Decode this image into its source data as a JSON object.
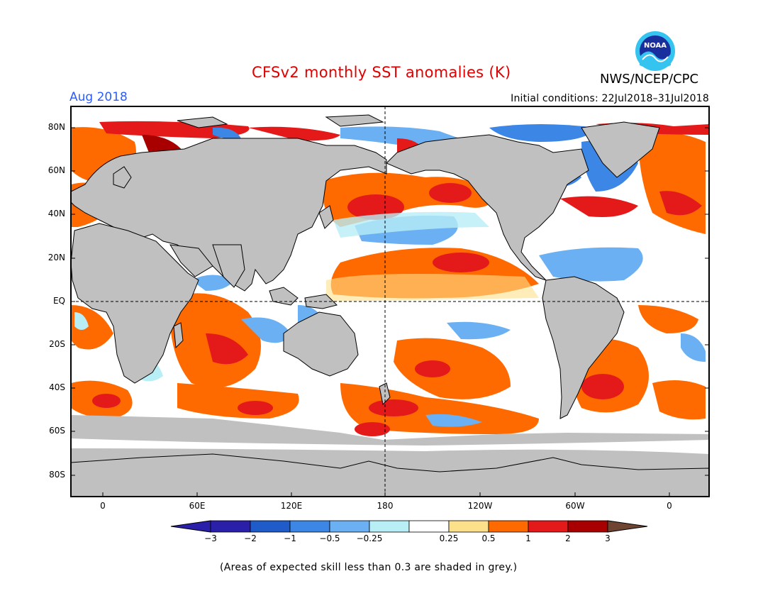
{
  "header": {
    "title": "CFSv2 monthly SST anomalies (K)",
    "month": "Aug 2018",
    "agency": "NWS/NCEP/CPC",
    "logo_text": "NOAA",
    "initial_conditions": "Initial conditions: 22Jul2018–31Jul2018"
  },
  "map": {
    "lat_labels": [
      "80N",
      "60N",
      "40N",
      "20N",
      "EQ",
      "20S",
      "40S",
      "60S",
      "80S"
    ],
    "lon_labels": [
      "0",
      "60E",
      "120E",
      "180",
      "120W",
      "60W",
      "0"
    ]
  },
  "colorbar": {
    "labels": [
      "−3",
      "−2",
      "−1",
      "−0.5",
      "−0.25",
      "0.25",
      "0.5",
      "1",
      "2",
      "3"
    ],
    "colors": [
      "#2a1fa8",
      "#1f5cc9",
      "#3c86e6",
      "#6ab0f2",
      "#b8eef6",
      "#ffffff",
      "#fde08a",
      "#ff6a00",
      "#e41a1a",
      "#a80000"
    ],
    "under_color": "#2a1fa8",
    "over_color": "#6e4432"
  },
  "colors": {
    "land": "#c0c0c0",
    "title": "#e00000",
    "month": "#2a5cff"
  },
  "footnote": "(Areas of expected skill less than 0.3 are shaded in grey.)"
}
